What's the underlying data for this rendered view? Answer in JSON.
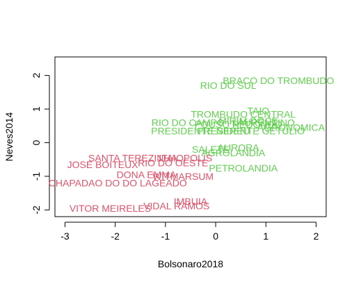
{
  "chart_data": {
    "type": "scatter",
    "title": "",
    "xlabel": "Bolsonaro2018",
    "ylabel": "Neves2014",
    "xlim": [
      -3.2,
      2.2
    ],
    "ylim": [
      -2.2,
      2.55
    ],
    "x_ticks": [
      -3,
      -2,
      -1,
      0,
      1,
      2
    ],
    "y_ticks": [
      -2,
      -1,
      0,
      1,
      2
    ],
    "grid": false,
    "colors": {
      "green": "#61d04f",
      "red": "#df536b"
    },
    "points": [
      {
        "label": "BRACO DO TROMBUDO",
        "x": 1.25,
        "y": 1.85,
        "color": "green"
      },
      {
        "label": "RIO DO SUL",
        "x": 0.25,
        "y": 1.7,
        "color": "green"
      },
      {
        "label": "TAIO",
        "x": 0.85,
        "y": 0.95,
        "color": "green"
      },
      {
        "label": "TROMBUDO CENTRAL",
        "x": 0.55,
        "y": 0.85,
        "color": "green"
      },
      {
        "label": "RIO DO CAMPO",
        "x": -0.55,
        "y": 0.6,
        "color": "green"
      },
      {
        "label": "MIRIM DOCE",
        "x": 0.65,
        "y": 0.65,
        "color": "green"
      },
      {
        "label": "POUSO REDONDO",
        "x": 0.45,
        "y": 0.55,
        "color": "green"
      },
      {
        "label": "LAURENTINO",
        "x": 0.95,
        "y": 0.6,
        "color": "green"
      },
      {
        "label": "AGRONOMICA",
        "x": 1.5,
        "y": 0.45,
        "color": "green"
      },
      {
        "label": "PRESIDENTE NEREU",
        "x": -0.3,
        "y": 0.35,
        "color": "green"
      },
      {
        "label": "PRESIDENTE GETULIO",
        "x": 0.7,
        "y": 0.35,
        "color": "green"
      },
      {
        "label": "SALETE",
        "x": -0.1,
        "y": -0.2,
        "color": "green"
      },
      {
        "label": "AURORA",
        "x": 0.45,
        "y": -0.15,
        "color": "green"
      },
      {
        "label": "AGROLANDIA",
        "x": 0.35,
        "y": -0.3,
        "color": "green"
      },
      {
        "label": "PETROLANDIA",
        "x": 0.55,
        "y": -0.75,
        "color": "green"
      },
      {
        "label": "SANTA TEREZINHA",
        "x": -1.65,
        "y": -0.45,
        "color": "red"
      },
      {
        "label": "ITAIOPOLIS",
        "x": -0.6,
        "y": -0.45,
        "color": "red"
      },
      {
        "label": "JOSE BOITEUX",
        "x": -2.25,
        "y": -0.65,
        "color": "red"
      },
      {
        "label": "RIO DO OESTE",
        "x": -0.85,
        "y": -0.6,
        "color": "red"
      },
      {
        "label": "DONA EMMA",
        "x": -1.38,
        "y": -0.95,
        "color": "red"
      },
      {
        "label": "WITMARSUM",
        "x": -0.65,
        "y": -1.0,
        "color": "red"
      },
      {
        "label": "CHAPADAO DO DO LAGEADO",
        "x": -1.95,
        "y": -1.2,
        "color": "red"
      },
      {
        "label": "IMBUIA",
        "x": -0.5,
        "y": -1.75,
        "color": "red"
      },
      {
        "label": "VIDAL RAMOS",
        "x": -0.78,
        "y": -1.88,
        "color": "red"
      },
      {
        "label": "VITOR MEIRELES",
        "x": -2.1,
        "y": -1.95,
        "color": "red"
      }
    ]
  }
}
